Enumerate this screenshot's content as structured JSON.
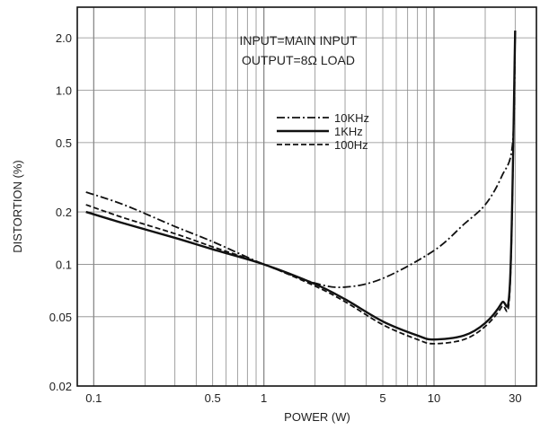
{
  "chart_data": {
    "type": "line",
    "xlabel": "POWER (W)",
    "ylabel": "DISTORTION (%)",
    "xscale": "log",
    "yscale": "log",
    "xlim": [
      0.08,
      40
    ],
    "ylim": [
      0.02,
      3.0
    ],
    "x_ticks": [
      {
        "value": 0.1,
        "label": "0.1"
      },
      {
        "value": 0.5,
        "label": "0.5"
      },
      {
        "value": 1,
        "label": "1"
      },
      {
        "value": 5,
        "label": "5"
      },
      {
        "value": 10,
        "label": "10"
      },
      {
        "value": 30,
        "label": "30"
      }
    ],
    "y_ticks": [
      {
        "value": 0.02,
        "label": "0.02"
      },
      {
        "value": 0.05,
        "label": "0.05"
      },
      {
        "value": 0.1,
        "label": "0.1"
      },
      {
        "value": 0.2,
        "label": "0.2"
      },
      {
        "value": 0.5,
        "label": "0.5"
      },
      {
        "value": 1.0,
        "label": "1.0"
      },
      {
        "value": 2.0,
        "label": "2.0"
      }
    ],
    "x_grid": [
      0.1,
      0.2,
      0.3,
      0.4,
      0.5,
      0.6,
      0.7,
      0.8,
      0.9,
      1,
      2,
      3,
      4,
      5,
      6,
      7,
      8,
      9,
      10,
      20,
      30
    ],
    "y_grid": [
      0.02,
      0.05,
      0.1,
      0.2,
      0.5,
      1.0,
      2.0
    ],
    "grid": true,
    "annotations": [
      "INPUT=MAIN INPUT",
      "OUTPUT=8Ω LOAD"
    ],
    "legend_position": "top-center",
    "series": [
      {
        "name": "10KHz",
        "style": "dashdot",
        "points": [
          [
            0.09,
            0.26
          ],
          [
            0.15,
            0.22
          ],
          [
            0.3,
            0.165
          ],
          [
            0.5,
            0.135
          ],
          [
            1,
            0.1
          ],
          [
            2,
            0.078
          ],
          [
            3,
            0.074
          ],
          [
            5,
            0.083
          ],
          [
            10,
            0.12
          ],
          [
            15,
            0.17
          ],
          [
            20,
            0.22
          ],
          [
            25,
            0.32
          ],
          [
            29,
            0.5
          ],
          [
            30,
            2.2
          ]
        ]
      },
      {
        "name": "1KHz",
        "style": "solid",
        "points": [
          [
            0.09,
            0.2
          ],
          [
            0.15,
            0.172
          ],
          [
            0.3,
            0.142
          ],
          [
            0.5,
            0.122
          ],
          [
            1,
            0.1
          ],
          [
            2,
            0.077
          ],
          [
            3,
            0.063
          ],
          [
            5,
            0.047
          ],
          [
            8,
            0.039
          ],
          [
            10,
            0.037
          ],
          [
            15,
            0.039
          ],
          [
            20,
            0.046
          ],
          [
            25,
            0.06
          ],
          [
            28,
            0.08
          ],
          [
            30,
            2.2
          ]
        ]
      },
      {
        "name": "100Hz",
        "style": "dashed",
        "points": [
          [
            0.09,
            0.22
          ],
          [
            0.15,
            0.185
          ],
          [
            0.3,
            0.15
          ],
          [
            0.5,
            0.126
          ],
          [
            1,
            0.1
          ],
          [
            2,
            0.075
          ],
          [
            3,
            0.061
          ],
          [
            5,
            0.045
          ],
          [
            8,
            0.037
          ],
          [
            10,
            0.035
          ],
          [
            15,
            0.037
          ],
          [
            20,
            0.044
          ],
          [
            25,
            0.057
          ],
          [
            28,
            0.075
          ],
          [
            30,
            2.2
          ]
        ]
      }
    ],
    "colors": {
      "line": "#111111",
      "grid": "#8a8a8a",
      "background": "#ffffff"
    }
  }
}
